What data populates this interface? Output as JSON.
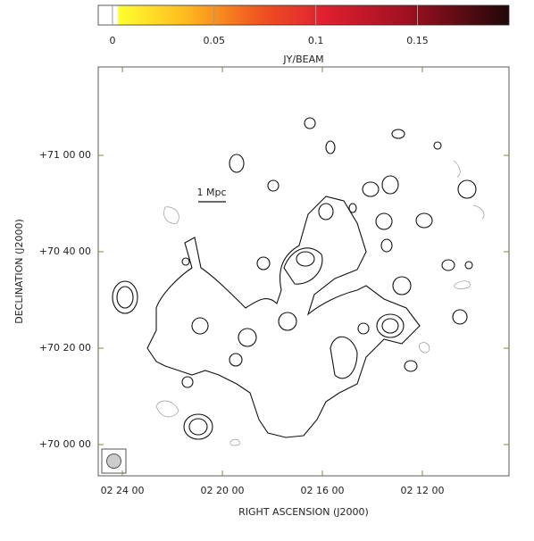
{
  "chart_data": {
    "type": "contour",
    "colorbar": {
      "label": "JY/BEAM",
      "lim": [
        -0.007,
        0.195
      ],
      "ticks": [
        0,
        0.05,
        0.1,
        0.15
      ]
    },
    "xlabel": "RIGHT ASCENSION (J2000)",
    "ylabel": "DECLINATION (J2000)",
    "xlim": [
      8698,
      7712
    ],
    "ylim": [
      251611,
      256700
    ],
    "xticks": [
      {
        "value": 8640,
        "label": "02 24 00"
      },
      {
        "value": 8400,
        "label": "02 20 00"
      },
      {
        "value": 8160,
        "label": "02 16 00"
      },
      {
        "value": 7920,
        "label": "02 12 00"
      }
    ],
    "yticks": [
      {
        "value": 255600,
        "label": "+71 00 00"
      },
      {
        "value": 254400,
        "label": "+70 40 00"
      },
      {
        "value": 253200,
        "label": "+70 20 00"
      },
      {
        "value": 252000,
        "label": "+70 00 00"
      }
    ],
    "annotation": "1 Mpc"
  }
}
